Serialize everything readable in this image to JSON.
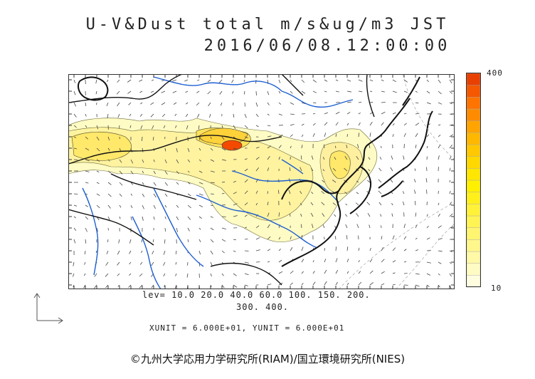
{
  "title": {
    "line1": "U-V&Dust total m/s&ug/m3 JST",
    "line2": "2016/06/08.12:00:00"
  },
  "legend": {
    "max_label": "400",
    "min_label": "10",
    "colors": [
      "#fffde0",
      "#fffbc4",
      "#fff9a8",
      "#fff78c",
      "#fff570",
      "#fff454",
      "#fff238",
      "#fff01c",
      "#fff000",
      "#ffe600",
      "#ffd800",
      "#ffc800",
      "#ffb800",
      "#ffa400",
      "#ff8c00",
      "#ff7400",
      "#f45800",
      "#e84000"
    ]
  },
  "levels": {
    "line1": "lev= 10.0 20.0 40.0 60.0 100. 150. 200.",
    "line2": "300. 400."
  },
  "units": "XUNIT = 6.000E+01, YUNIT = 6.000E+01",
  "credit": "©九州大学応用力学研究所(RIAM)/国立環境研究所(NIES)",
  "map_colors": {
    "coast": "#111111",
    "river": "#1e5fd0",
    "dust_low": "#fffbc4",
    "dust_mid": "#fff3a0",
    "dust_high": "#ffd23a",
    "dust_peak": "#f44a00"
  }
}
